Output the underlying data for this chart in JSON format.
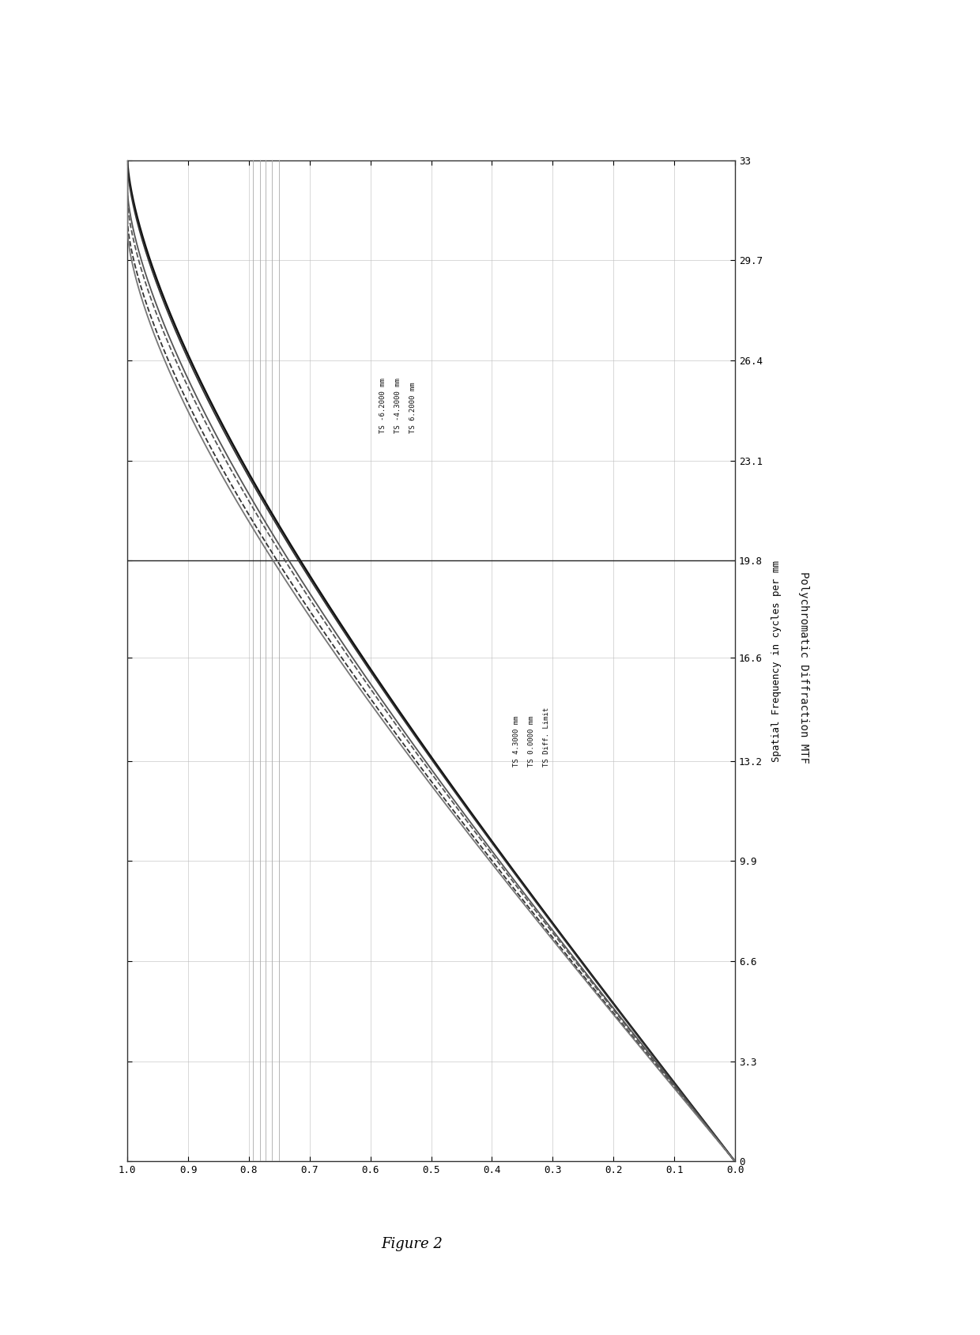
{
  "title": "Polychromatic Diffraction MTF",
  "xlabel": "Spatial Frequency in cycles per mm",
  "subtitle": "Polychromatic Diffraction MTF",
  "ytick_labels": [
    "0",
    "3.3",
    "6.6",
    "9.9",
    "13.2",
    "16.6",
    "19.8",
    "23.1",
    "26.4",
    "29.7",
    "33"
  ],
  "yticks": [
    0.0,
    3.3,
    6.6,
    9.9,
    13.2,
    16.6,
    19.8,
    23.1,
    26.4,
    29.7,
    33.0
  ],
  "xtick_labels": [
    "1.0",
    "0.9",
    "0.8",
    "0.7",
    "0.6",
    "0.5",
    "0.4",
    "0.3",
    "0.2",
    "0.1",
    "0.0"
  ],
  "xticks": [
    0.0,
    0.1,
    0.2,
    0.3,
    0.4,
    0.5,
    0.6,
    0.7,
    0.8,
    0.9,
    1.0
  ],
  "ylim": [
    0.0,
    33.0
  ],
  "xlim": [
    0.0,
    1.0
  ],
  "legend_left_lines": [
    "TS Diff. Limit",
    "TS 0.0000 mm",
    "TS 4.3000 mm"
  ],
  "legend_right_lines": [
    "TS 6.2000 mm",
    "TS -4.3000 mm",
    "TS -6.2000 mm"
  ],
  "vline_x_values": [
    0.207,
    0.218,
    0.228,
    0.238,
    0.249
  ],
  "hline_y_value": 19.8,
  "figure_caption": "Figure 2",
  "bg_color": "#ffffff",
  "line_color": "#333333",
  "grid_color": "#bbbbbb"
}
